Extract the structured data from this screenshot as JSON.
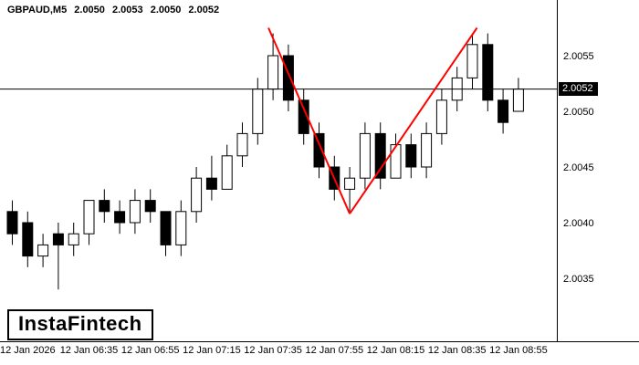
{
  "window": {
    "header": {
      "symbol": "GBPAUD,M5",
      "open": "2.0050",
      "high": "2.0053",
      "low": "2.0050",
      "close": "2.0052"
    }
  },
  "logo": {
    "text": "InstaFintech"
  },
  "price_tag": "2.0052",
  "chart_data": {
    "type": "candlestick",
    "title": "GBPAUD,M5 2.0050 2.0053 2.0050 2.0052",
    "symbol": "GBPAUD",
    "timeframe": "M5",
    "quote": {
      "open": 2.005,
      "high": 2.0053,
      "low": 2.005,
      "close": 2.0052
    },
    "bid": 2.0052,
    "ylim": [
      2.003,
      2.006
    ],
    "grid": false,
    "legend": "none",
    "colors": {
      "bull_fill": "#ffffff",
      "bear_fill": "#000000",
      "outline": "#000000",
      "trend": "#ff0000",
      "background": "#ffffff"
    },
    "y_ticks": [
      "2.0055",
      "2.0050",
      "2.0045",
      "2.0040",
      "2.0035"
    ],
    "x_ticks": [
      {
        "label": "12 Jan 2026",
        "index": 1
      },
      {
        "label": "12 Jan 06:35",
        "index": 5
      },
      {
        "label": "12 Jan 06:55",
        "index": 9
      },
      {
        "label": "12 Jan 07:15",
        "index": 13
      },
      {
        "label": "12 Jan 07:35",
        "index": 17
      },
      {
        "label": "12 Jan 07:55",
        "index": 21
      },
      {
        "label": "12 Jan 08:15",
        "index": 25
      },
      {
        "label": "12 Jan 08:35",
        "index": 29
      },
      {
        "label": "12 Jan 08:55",
        "index": 33
      }
    ],
    "candles": [
      {
        "t": "06:10",
        "o": 2.0041,
        "h": 2.0042,
        "l": 2.0038,
        "c": 2.0039
      },
      {
        "t": "06:15",
        "o": 2.004,
        "h": 2.0041,
        "l": 2.0036,
        "c": 2.0037
      },
      {
        "t": "06:20",
        "o": 2.0037,
        "h": 2.0039,
        "l": 2.0036,
        "c": 2.0038
      },
      {
        "t": "06:25",
        "o": 2.0039,
        "h": 2.004,
        "l": 2.0034,
        "c": 2.0038
      },
      {
        "t": "06:30",
        "o": 2.0038,
        "h": 2.004,
        "l": 2.0037,
        "c": 2.0039
      },
      {
        "t": "06:35",
        "o": 2.0039,
        "h": 2.0042,
        "l": 2.0038,
        "c": 2.0042
      },
      {
        "t": "06:40",
        "o": 2.0042,
        "h": 2.0043,
        "l": 2.004,
        "c": 2.0041
      },
      {
        "t": "06:45",
        "o": 2.0041,
        "h": 2.0042,
        "l": 2.0039,
        "c": 2.004
      },
      {
        "t": "06:50",
        "o": 2.004,
        "h": 2.0043,
        "l": 2.0039,
        "c": 2.0042
      },
      {
        "t": "06:55",
        "o": 2.0042,
        "h": 2.0043,
        "l": 2.004,
        "c": 2.0041
      },
      {
        "t": "07:00",
        "o": 2.0041,
        "h": 2.0041,
        "l": 2.0037,
        "c": 2.0038
      },
      {
        "t": "07:05",
        "o": 2.0038,
        "h": 2.0042,
        "l": 2.0037,
        "c": 2.0041
      },
      {
        "t": "07:10",
        "o": 2.0041,
        "h": 2.0045,
        "l": 2.004,
        "c": 2.0044
      },
      {
        "t": "07:15",
        "o": 2.0044,
        "h": 2.0046,
        "l": 2.0042,
        "c": 2.0043
      },
      {
        "t": "07:20",
        "o": 2.0043,
        "h": 2.0047,
        "l": 2.0043,
        "c": 2.0046
      },
      {
        "t": "07:25",
        "o": 2.0046,
        "h": 2.0049,
        "l": 2.0045,
        "c": 2.0048
      },
      {
        "t": "07:30",
        "o": 2.0048,
        "h": 2.0053,
        "l": 2.0047,
        "c": 2.0052
      },
      {
        "t": "07:35",
        "o": 2.0052,
        "h": 2.0057,
        "l": 2.0051,
        "c": 2.0055
      },
      {
        "t": "07:40",
        "o": 2.0055,
        "h": 2.0056,
        "l": 2.005,
        "c": 2.0051
      },
      {
        "t": "07:45",
        "o": 2.0051,
        "h": 2.0052,
        "l": 2.0047,
        "c": 2.0048
      },
      {
        "t": "07:50",
        "o": 2.0048,
        "h": 2.0049,
        "l": 2.0044,
        "c": 2.0045
      },
      {
        "t": "07:55",
        "o": 2.0045,
        "h": 2.0046,
        "l": 2.0042,
        "c": 2.0043
      },
      {
        "t": "08:00",
        "o": 2.0043,
        "h": 2.0045,
        "l": 2.0041,
        "c": 2.0044
      },
      {
        "t": "08:05",
        "o": 2.0044,
        "h": 2.0049,
        "l": 2.0043,
        "c": 2.0048
      },
      {
        "t": "08:10",
        "o": 2.0048,
        "h": 2.0049,
        "l": 2.0043,
        "c": 2.0044
      },
      {
        "t": "08:15",
        "o": 2.0044,
        "h": 2.0048,
        "l": 2.0044,
        "c": 2.0047
      },
      {
        "t": "08:20",
        "o": 2.0047,
        "h": 2.0048,
        "l": 2.0044,
        "c": 2.0045
      },
      {
        "t": "08:25",
        "o": 2.0045,
        "h": 2.0049,
        "l": 2.0044,
        "c": 2.0048
      },
      {
        "t": "08:30",
        "o": 2.0048,
        "h": 2.0052,
        "l": 2.0047,
        "c": 2.0051
      },
      {
        "t": "08:35",
        "o": 2.0051,
        "h": 2.0054,
        "l": 2.005,
        "c": 2.0053
      },
      {
        "t": "08:40",
        "o": 2.0053,
        "h": 2.0057,
        "l": 2.0052,
        "c": 2.0056
      },
      {
        "t": "08:45",
        "o": 2.0056,
        "h": 2.0057,
        "l": 2.005,
        "c": 2.0051
      },
      {
        "t": "08:50",
        "o": 2.0051,
        "h": 2.0052,
        "l": 2.0048,
        "c": 2.0049
      },
      {
        "t": "08:55",
        "o": 2.005,
        "h": 2.0053,
        "l": 2.005,
        "c": 2.0052
      }
    ],
    "trendlines": [
      {
        "color": "#ff0000",
        "points": [
          {
            "index": 16.7,
            "price": 2.00575
          },
          {
            "index": 22.0,
            "price": 2.00408
          }
        ]
      },
      {
        "color": "#ff0000",
        "points": [
          {
            "index": 22.0,
            "price": 2.00408
          },
          {
            "index": 30.3,
            "price": 2.00575
          }
        ]
      }
    ]
  }
}
